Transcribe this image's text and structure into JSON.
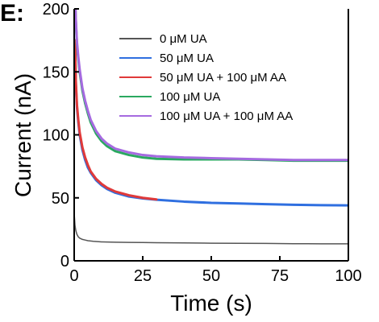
{
  "chart_data": {
    "type": "line",
    "panel_label": "E:",
    "xlabel": "Time (s)",
    "ylabel": "Current (nA)",
    "xlim": [
      0,
      100
    ],
    "ylim": [
      0,
      200
    ],
    "x_ticks": [
      "0",
      "25",
      "50",
      "75",
      "100"
    ],
    "y_ticks": [
      "0",
      "50",
      "100",
      "150",
      "200"
    ],
    "grid": false,
    "legend_position": "top-right",
    "series": [
      {
        "name": "0 μM UA",
        "color": "#555555",
        "x": [
          0,
          0.3,
          0.6,
          1,
          1.5,
          2,
          3,
          4,
          5,
          7,
          10,
          15,
          20,
          25,
          30,
          40,
          50,
          60,
          70,
          80,
          90,
          100
        ],
        "y": [
          38,
          28,
          24,
          21,
          19,
          18,
          17,
          16.5,
          16,
          15.5,
          15,
          14.8,
          14.6,
          14.5,
          14.4,
          14.2,
          14,
          13.9,
          13.8,
          13.6,
          13.5,
          13.5
        ]
      },
      {
        "name": "50 μM UA",
        "color": "#2f6fe0",
        "x": [
          0.3,
          0.6,
          1,
          1.5,
          2,
          3,
          4,
          5,
          6,
          8,
          10,
          12,
          15,
          20,
          25,
          30,
          40,
          50,
          60,
          70,
          80,
          90,
          100
        ],
        "y": [
          172,
          140,
          122,
          110,
          100,
          88,
          80,
          74,
          70,
          64,
          60,
          57,
          54,
          51,
          49.5,
          48.5,
          47,
          46,
          45.5,
          45,
          44.5,
          44.2,
          44
        ]
      },
      {
        "name": "50 μM UA + 100 μM AA",
        "color": "#e03a3a",
        "x": [
          0.3,
          0.6,
          1,
          1.5,
          2,
          3,
          4,
          5,
          6,
          8,
          10,
          12,
          15,
          20,
          25,
          30
        ],
        "y": [
          175,
          143,
          124,
          112,
          102,
          90,
          82,
          76,
          71,
          65,
          61,
          58,
          55,
          52,
          50,
          48.7
        ]
      },
      {
        "name": "100 μM UA",
        "color": "#2aa860",
        "x": [
          0.3,
          0.6,
          1,
          1.5,
          2,
          3,
          4,
          5,
          6,
          8,
          10,
          12,
          15,
          20,
          25,
          30,
          40,
          50,
          60,
          70,
          80,
          90,
          100
        ],
        "y": [
          210,
          190,
          172,
          160,
          150,
          135,
          125,
          117,
          110,
          101,
          95,
          91,
          87,
          84,
          82,
          81,
          80.5,
          80.5,
          80.5,
          80,
          79.5,
          79.5,
          79.5
        ]
      },
      {
        "name": "100 μM UA + 100 μM AA",
        "color": "#a56ae0",
        "x": [
          0.3,
          0.6,
          1,
          1.5,
          2,
          3,
          4,
          5,
          6,
          8,
          10,
          12,
          15,
          20,
          25,
          30,
          40,
          50,
          60,
          70,
          80,
          90,
          100
        ],
        "y": [
          212,
          192,
          174,
          162,
          152,
          137,
          127,
          119,
          112,
          103,
          97,
          93,
          89,
          86,
          84,
          83,
          82,
          81.5,
          81,
          80.5,
          80,
          80,
          80
        ]
      }
    ]
  }
}
